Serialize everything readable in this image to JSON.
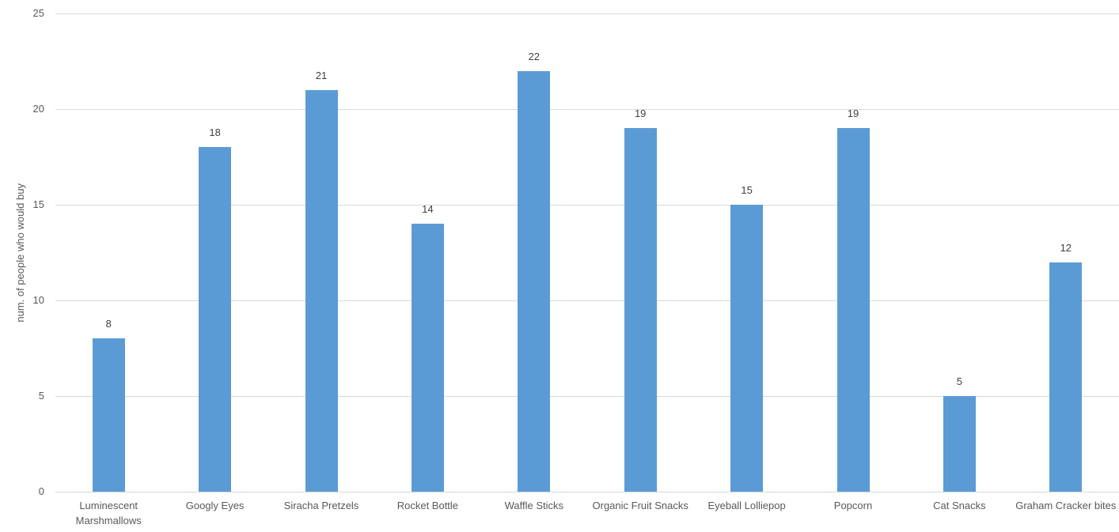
{
  "chart_data": {
    "type": "bar",
    "title": "",
    "xlabel": "",
    "ylabel": "num. of people who would buy",
    "categories": [
      "Luminescent Marshmallows",
      "Googly Eyes",
      "Siracha Pretzels",
      "Rocket Bottle",
      "Waffle Sticks",
      "Organic Fruit Snacks",
      "Eyeball Lolliepop",
      "Popcorn",
      "Cat Snacks",
      "Graham Cracker bites"
    ],
    "values": [
      8,
      18,
      21,
      14,
      22,
      19,
      15,
      19,
      5,
      12
    ],
    "data_labels": [
      "8",
      "18",
      "21",
      "14",
      "22",
      "19",
      "15",
      "19",
      "5",
      "12"
    ],
    "yticks": [
      0,
      5,
      10,
      15,
      20,
      25
    ],
    "ylim": [
      0,
      25
    ],
    "grid": true,
    "legend": false,
    "colors": {
      "bar": "#5b9bd5",
      "gridline": "#d9d9d9",
      "axis_text": "#595959",
      "data_label": "#404040",
      "background": "#ffffff"
    }
  }
}
